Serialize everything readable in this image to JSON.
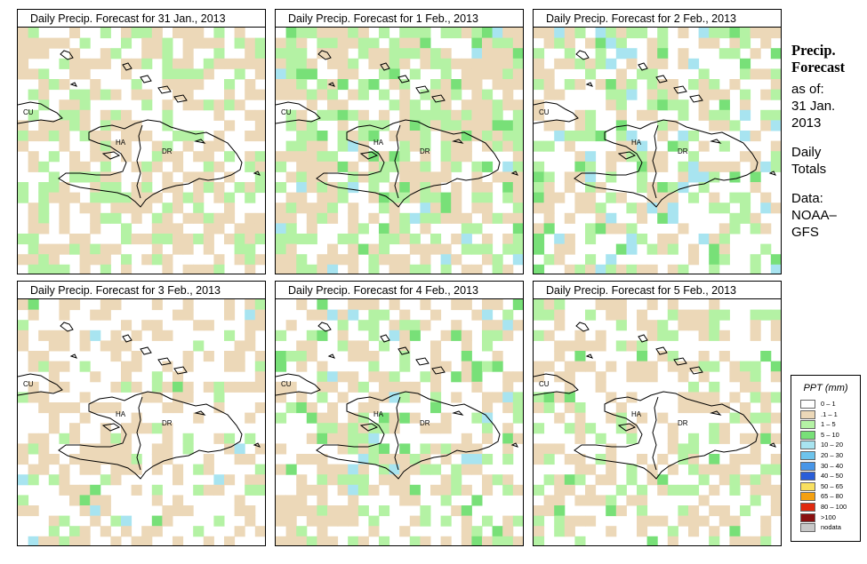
{
  "panels": [
    {
      "title": "Daily Precip. Forecast for  31 Jan., 2013"
    },
    {
      "title": "Daily Precip. Forecast for  1 Feb., 2013"
    },
    {
      "title": "Daily Precip. Forecast for  2 Feb., 2013"
    },
    {
      "title": "Daily Precip. Forecast for  3 Feb., 2013"
    },
    {
      "title": "Daily Precip. Forecast for  4 Feb., 2013"
    },
    {
      "title": "Daily Precip. Forecast for  5 Feb., 2013"
    }
  ],
  "map_labels": {
    "cuba": "CU",
    "haiti": "HA",
    "dominican_republic": "DR"
  },
  "side": {
    "heading_line1": "Precip.",
    "heading_line2": "Forecast",
    "as_of": "as of:",
    "date_line1": "31 Jan.",
    "date_line2": "2013",
    "totals_line1": "Daily",
    "totals_line2": "Totals",
    "data_line1": "Data:",
    "data_line2": "NOAA–",
    "data_line3": "GFS"
  },
  "legend": {
    "title": "PPT (mm)",
    "items": [
      {
        "label": "0 – 1",
        "color": "#ffffff"
      },
      {
        "label": ".1 – 1",
        "color": "#ecd8b8"
      },
      {
        "label": "1 – 5",
        "color": "#b4f2a4"
      },
      {
        "label": "5 – 10",
        "color": "#78e078"
      },
      {
        "label": "10 – 20",
        "color": "#a8e4f0"
      },
      {
        "label": "20 – 30",
        "color": "#6ec4ec"
      },
      {
        "label": "30 – 40",
        "color": "#4896e8"
      },
      {
        "label": "40 – 50",
        "color": "#2a5ed8"
      },
      {
        "label": "50 – 65",
        "color": "#f8e060"
      },
      {
        "label": "65 – 80",
        "color": "#f4a010"
      },
      {
        "label": "80 – 100",
        "color": "#e02a10"
      },
      {
        "label": ">100",
        "color": "#8a1010"
      },
      {
        "label": "nodata",
        "color": "#c8c8c8"
      }
    ]
  }
}
